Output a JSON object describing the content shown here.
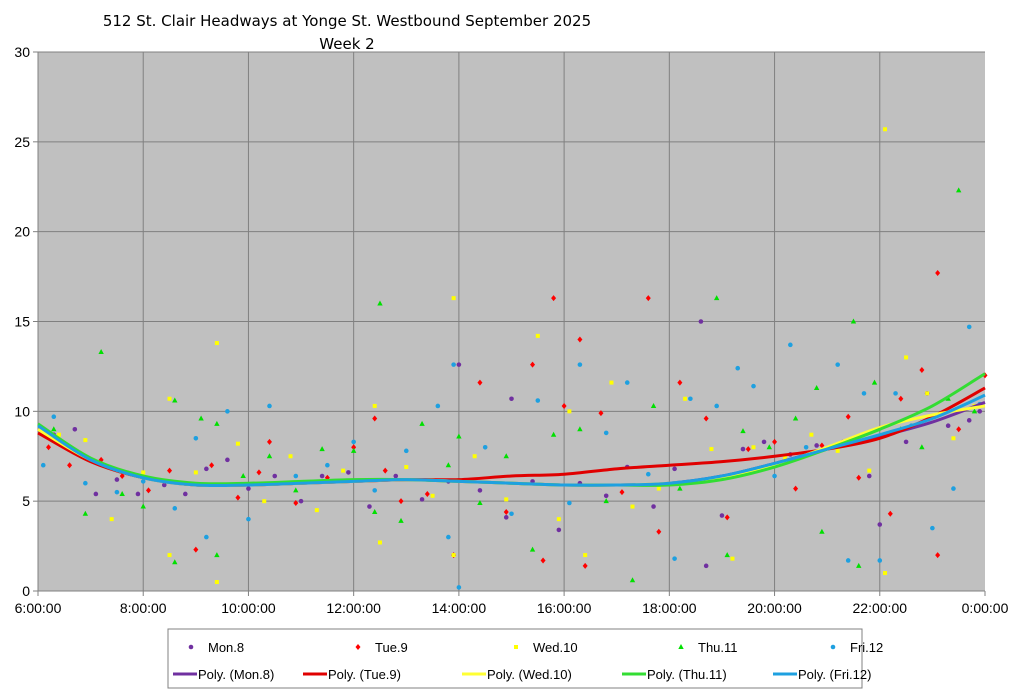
{
  "chart_data": {
    "type": "scatter",
    "title": "512 St. Clair Headways at Yonge St. Westbound September 2025",
    "subtitle": "Week 2",
    "xlabel": "",
    "ylabel": "",
    "x_unit": "hour of day",
    "xlim": [
      6,
      24
    ],
    "ylim": [
      0,
      30
    ],
    "x_ticks": [
      6,
      8,
      10,
      12,
      14,
      16,
      18,
      20,
      22,
      24
    ],
    "x_tick_labels": [
      "6:00:00",
      "8:00:00",
      "10:00:00",
      "12:00:00",
      "14:00:00",
      "16:00:00",
      "18:00:00",
      "20:00:00",
      "22:00:00",
      "0:00:00"
    ],
    "y_ticks": [
      0,
      5,
      10,
      15,
      20,
      25,
      30
    ],
    "y_tick_labels": [
      "0",
      "5",
      "10",
      "15",
      "20",
      "25",
      "30"
    ],
    "grid": true,
    "plot_background": "#c0c0c0",
    "legend_position": "bottom",
    "series": [
      {
        "name": "Mon.8",
        "color": "#7030a0",
        "marker": "circle",
        "points": [
          [
            6.3,
            8.7
          ],
          [
            6.7,
            9.0
          ],
          [
            7.1,
            5.4
          ],
          [
            7.5,
            6.2
          ],
          [
            7.9,
            5.4
          ],
          [
            8.4,
            5.9
          ],
          [
            8.8,
            5.4
          ],
          [
            9.2,
            6.8
          ],
          [
            9.6,
            7.3
          ],
          [
            10.0,
            5.7
          ],
          [
            10.5,
            6.4
          ],
          [
            11.0,
            5.0
          ],
          [
            11.4,
            6.4
          ],
          [
            11.9,
            6.6
          ],
          [
            12.3,
            4.7
          ],
          [
            12.8,
            6.4
          ],
          [
            13.3,
            5.1
          ],
          [
            13.8,
            6.1
          ],
          [
            14.0,
            12.6
          ],
          [
            14.4,
            5.6
          ],
          [
            14.9,
            4.1
          ],
          [
            15.0,
            10.7
          ],
          [
            15.4,
            6.1
          ],
          [
            15.9,
            3.4
          ],
          [
            16.3,
            6.0
          ],
          [
            16.8,
            5.3
          ],
          [
            17.2,
            6.9
          ],
          [
            17.7,
            4.7
          ],
          [
            18.1,
            6.8
          ],
          [
            18.6,
            15.0
          ],
          [
            18.7,
            1.4
          ],
          [
            19.0,
            4.2
          ],
          [
            19.4,
            7.9
          ],
          [
            19.8,
            8.3
          ],
          [
            20.3,
            7.6
          ],
          [
            20.8,
            8.1
          ],
          [
            21.3,
            8.3
          ],
          [
            21.8,
            6.4
          ],
          [
            22.0,
            3.7
          ],
          [
            22.5,
            8.3
          ],
          [
            22.9,
            11.0
          ],
          [
            23.3,
            9.2
          ],
          [
            23.7,
            9.5
          ],
          [
            23.9,
            10.0
          ]
        ]
      },
      {
        "name": "Tue.9",
        "color": "#ff0000",
        "marker": "diamond",
        "points": [
          [
            6.2,
            8.0
          ],
          [
            6.6,
            7.0
          ],
          [
            7.2,
            7.3
          ],
          [
            7.6,
            6.4
          ],
          [
            8.1,
            5.6
          ],
          [
            8.5,
            6.7
          ],
          [
            9.0,
            2.3
          ],
          [
            9.3,
            7.0
          ],
          [
            9.8,
            5.2
          ],
          [
            10.2,
            6.6
          ],
          [
            10.4,
            8.3
          ],
          [
            10.9,
            4.9
          ],
          [
            11.5,
            6.3
          ],
          [
            12.0,
            8.0
          ],
          [
            12.4,
            9.6
          ],
          [
            12.6,
            6.7
          ],
          [
            12.9,
            5.0
          ],
          [
            13.4,
            5.4
          ],
          [
            13.9,
            2.0
          ],
          [
            14.4,
            11.6
          ],
          [
            14.9,
            4.4
          ],
          [
            15.4,
            12.6
          ],
          [
            15.6,
            1.7
          ],
          [
            15.8,
            16.3
          ],
          [
            16.0,
            10.3
          ],
          [
            16.3,
            14.0
          ],
          [
            16.4,
            1.4
          ],
          [
            16.7,
            9.9
          ],
          [
            17.1,
            5.5
          ],
          [
            17.6,
            16.3
          ],
          [
            17.8,
            3.3
          ],
          [
            18.2,
            11.6
          ],
          [
            18.7,
            9.6
          ],
          [
            19.1,
            4.1
          ],
          [
            19.5,
            7.9
          ],
          [
            20.0,
            8.3
          ],
          [
            20.4,
            5.7
          ],
          [
            20.9,
            8.1
          ],
          [
            21.4,
            9.7
          ],
          [
            21.6,
            6.3
          ],
          [
            22.2,
            4.3
          ],
          [
            22.4,
            10.7
          ],
          [
            22.8,
            12.3
          ],
          [
            23.1,
            17.7
          ],
          [
            23.1,
            2.0
          ],
          [
            23.5,
            9.0
          ],
          [
            24.0,
            12.0
          ]
        ]
      },
      {
        "name": "Wed.10",
        "color": "#ffff00",
        "marker": "square",
        "points": [
          [
            6.4,
            8.7
          ],
          [
            6.9,
            8.4
          ],
          [
            7.4,
            4.0
          ],
          [
            8.0,
            6.6
          ],
          [
            8.5,
            10.7
          ],
          [
            8.5,
            2.0
          ],
          [
            9.0,
            6.6
          ],
          [
            9.4,
            13.8
          ],
          [
            9.4,
            0.5
          ],
          [
            9.8,
            8.2
          ],
          [
            10.3,
            5.0
          ],
          [
            10.8,
            7.5
          ],
          [
            11.3,
            4.5
          ],
          [
            11.8,
            6.7
          ],
          [
            12.4,
            10.3
          ],
          [
            12.5,
            2.7
          ],
          [
            13.0,
            6.9
          ],
          [
            13.5,
            5.3
          ],
          [
            13.9,
            16.3
          ],
          [
            13.9,
            2.0
          ],
          [
            14.3,
            7.5
          ],
          [
            14.9,
            5.1
          ],
          [
            15.5,
            14.2
          ],
          [
            15.9,
            4.0
          ],
          [
            16.1,
            10.0
          ],
          [
            16.4,
            2.0
          ],
          [
            16.9,
            11.6
          ],
          [
            17.3,
            4.7
          ],
          [
            17.8,
            5.7
          ],
          [
            18.3,
            10.7
          ],
          [
            18.8,
            7.9
          ],
          [
            19.2,
            1.8
          ],
          [
            19.6,
            8.0
          ],
          [
            20.2,
            7.4
          ],
          [
            20.7,
            8.7
          ],
          [
            21.2,
            7.8
          ],
          [
            21.8,
            6.7
          ],
          [
            22.1,
            25.7
          ],
          [
            22.1,
            1.0
          ],
          [
            22.5,
            13.0
          ],
          [
            22.9,
            11.0
          ],
          [
            23.4,
            8.5
          ],
          [
            23.8,
            10.3
          ]
        ]
      },
      {
        "name": "Thu.11",
        "color": "#00e000",
        "marker": "triangle",
        "points": [
          [
            6.3,
            9.0
          ],
          [
            6.9,
            4.3
          ],
          [
            7.2,
            13.3
          ],
          [
            7.6,
            5.4
          ],
          [
            8.0,
            4.7
          ],
          [
            8.6,
            10.6
          ],
          [
            8.6,
            1.6
          ],
          [
            9.1,
            9.6
          ],
          [
            9.4,
            9.3
          ],
          [
            9.4,
            2.0
          ],
          [
            9.9,
            6.4
          ],
          [
            10.4,
            7.5
          ],
          [
            10.9,
            5.6
          ],
          [
            11.4,
            7.9
          ],
          [
            12.0,
            7.8
          ],
          [
            12.4,
            4.4
          ],
          [
            12.5,
            16.0
          ],
          [
            12.9,
            3.9
          ],
          [
            13.3,
            9.3
          ],
          [
            13.8,
            7.0
          ],
          [
            14.0,
            8.6
          ],
          [
            14.4,
            4.9
          ],
          [
            14.9,
            7.5
          ],
          [
            15.4,
            2.3
          ],
          [
            15.8,
            8.7
          ],
          [
            16.3,
            9.0
          ],
          [
            16.8,
            5.0
          ],
          [
            17.3,
            0.6
          ],
          [
            17.7,
            10.3
          ],
          [
            18.2,
            5.7
          ],
          [
            18.9,
            16.3
          ],
          [
            19.1,
            2.0
          ],
          [
            19.4,
            8.9
          ],
          [
            19.9,
            8.0
          ],
          [
            20.4,
            9.6
          ],
          [
            20.8,
            11.3
          ],
          [
            20.9,
            3.3
          ],
          [
            21.5,
            15.0
          ],
          [
            21.6,
            1.4
          ],
          [
            21.9,
            11.6
          ],
          [
            22.4,
            9.0
          ],
          [
            22.8,
            8.0
          ],
          [
            23.3,
            10.7
          ],
          [
            23.5,
            22.3
          ],
          [
            23.8,
            10.0
          ]
        ]
      },
      {
        "name": "Fri.12",
        "color": "#1ea0e0",
        "marker": "circle",
        "points": [
          [
            6.1,
            7.0
          ],
          [
            6.3,
            9.7
          ],
          [
            6.9,
            6.0
          ],
          [
            7.5,
            5.5
          ],
          [
            8.0,
            6.1
          ],
          [
            8.6,
            4.6
          ],
          [
            9.0,
            8.5
          ],
          [
            9.2,
            3.0
          ],
          [
            9.6,
            10.0
          ],
          [
            10.0,
            4.0
          ],
          [
            10.4,
            10.3
          ],
          [
            10.9,
            6.4
          ],
          [
            11.5,
            7.0
          ],
          [
            12.0,
            8.3
          ],
          [
            12.4,
            5.6
          ],
          [
            13.0,
            7.8
          ],
          [
            13.6,
            10.3
          ],
          [
            13.8,
            3.0
          ],
          [
            14.0,
            0.2
          ],
          [
            13.9,
            12.6
          ],
          [
            14.5,
            8.0
          ],
          [
            15.0,
            4.3
          ],
          [
            15.5,
            10.6
          ],
          [
            16.1,
            4.9
          ],
          [
            16.3,
            12.6
          ],
          [
            16.8,
            8.8
          ],
          [
            17.2,
            11.6
          ],
          [
            17.6,
            6.5
          ],
          [
            18.1,
            1.8
          ],
          [
            18.4,
            10.7
          ],
          [
            18.9,
            10.3
          ],
          [
            19.3,
            12.4
          ],
          [
            19.6,
            11.4
          ],
          [
            20.0,
            6.4
          ],
          [
            20.3,
            13.7
          ],
          [
            20.6,
            8.0
          ],
          [
            21.2,
            12.6
          ],
          [
            21.4,
            1.7
          ],
          [
            21.7,
            11.0
          ],
          [
            22.0,
            1.7
          ],
          [
            22.3,
            11.0
          ],
          [
            22.6,
            9.2
          ],
          [
            23.0,
            3.5
          ],
          [
            23.4,
            5.7
          ],
          [
            23.7,
            14.7
          ],
          [
            23.9,
            10.4
          ]
        ]
      }
    ],
    "trendlines": [
      {
        "name": "Poly. (Mon.8)",
        "color": "#7030a0",
        "x": [
          6,
          7,
          8,
          9,
          10,
          11,
          12,
          13,
          14,
          15,
          16,
          17,
          18,
          19,
          20,
          21,
          22,
          23,
          24
        ],
        "y": [
          9.0,
          7.3,
          6.3,
          5.9,
          5.9,
          6.0,
          6.1,
          6.2,
          6.1,
          6.0,
          5.9,
          5.9,
          6.0,
          6.4,
          7.1,
          7.9,
          8.6,
          9.4,
          10.5
        ]
      },
      {
        "name": "Poly. (Tue.9)",
        "color": "#e00000",
        "x": [
          6,
          7,
          8,
          9,
          10,
          11,
          12,
          13,
          14,
          15,
          16,
          17,
          18,
          19,
          20,
          21,
          22,
          23,
          24
        ],
        "y": [
          8.8,
          7.2,
          6.3,
          5.9,
          5.9,
          6.0,
          6.1,
          6.2,
          6.2,
          6.4,
          6.5,
          6.8,
          7.0,
          7.2,
          7.5,
          7.9,
          8.5,
          9.7,
          11.3
        ]
      },
      {
        "name": "Poly. (Wed.10)",
        "color": "#ffff33",
        "x": [
          6,
          7,
          8,
          9,
          10,
          11,
          12,
          13,
          14,
          15,
          16,
          17,
          18,
          19,
          20,
          21,
          22,
          23,
          24
        ],
        "y": [
          9.0,
          7.3,
          6.3,
          5.9,
          5.9,
          6.0,
          6.1,
          6.2,
          6.1,
          6.0,
          5.9,
          5.9,
          6.0,
          6.3,
          7.0,
          8.0,
          9.1,
          9.8,
          10.3
        ]
      },
      {
        "name": "Poly. (Thu.11)",
        "color": "#33dd33",
        "x": [
          6,
          7,
          8,
          9,
          10,
          11,
          12,
          13,
          14,
          15,
          16,
          17,
          18,
          19,
          20,
          21,
          22,
          23,
          24
        ],
        "y": [
          9.3,
          7.4,
          6.4,
          6.0,
          6.0,
          6.1,
          6.2,
          6.2,
          6.1,
          6.0,
          5.9,
          5.9,
          5.9,
          6.2,
          6.9,
          7.9,
          9.0,
          10.3,
          12.1
        ]
      },
      {
        "name": "Poly. (Fri.12)",
        "color": "#1ea0e0",
        "x": [
          6,
          7,
          8,
          9,
          10,
          11,
          12,
          13,
          14,
          15,
          16,
          17,
          18,
          19,
          20,
          21,
          22,
          23,
          24
        ],
        "y": [
          9.2,
          7.3,
          6.3,
          5.9,
          5.9,
          6.0,
          6.1,
          6.2,
          6.1,
          6.0,
          5.9,
          5.9,
          6.0,
          6.4,
          7.1,
          7.9,
          8.7,
          9.6,
          10.9
        ]
      }
    ]
  }
}
